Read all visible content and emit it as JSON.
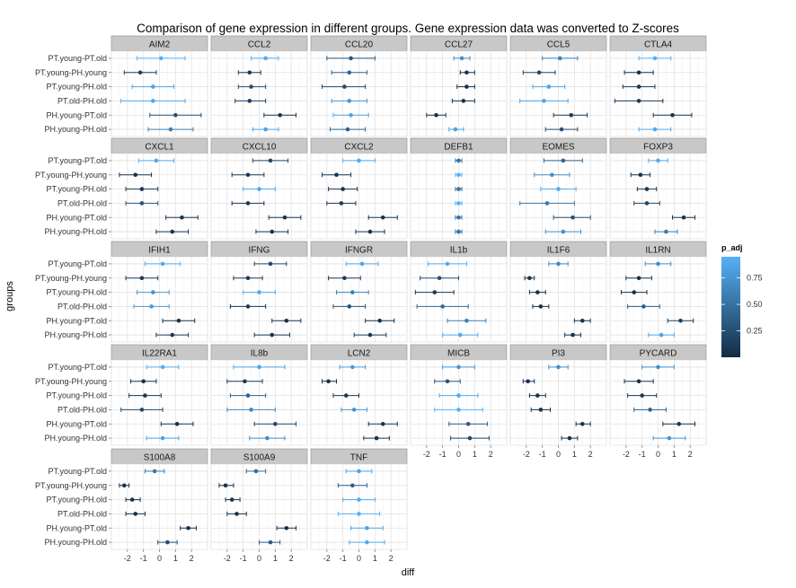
{
  "title": "Comparison of gene expression in different groups. Gene expression data was converted to Z-scores",
  "chart_data": {
    "type": "scatter",
    "x_label": "diff",
    "y_label": "groups",
    "xlim": [
      -3,
      3
    ],
    "x_ticks": [
      -2,
      -1,
      0,
      1,
      2
    ],
    "x_tick_labels": [
      "-2",
      "-1",
      "0",
      "1",
      "2"
    ],
    "groups": [
      "PT.young-PT.old",
      "PT.young-PH.young",
      "PT.young-PH.old",
      "PT.old-PH.old",
      "PH.young-PT.old",
      "PH.young-PH.old"
    ],
    "legend": {
      "title": "p_adj",
      "ticks": [
        0.25,
        0.5,
        0.75
      ],
      "tick_labels": [
        "0.25",
        "0.50",
        "0.75"
      ],
      "range": [
        0.0,
        0.95
      ],
      "low_color": "#132b43",
      "high_color": "#56b1f7"
    },
    "panel_background": "#ffffff",
    "grid": true,
    "strip_background": "#c8c8c8",
    "panels": [
      {
        "gene": "AIM2",
        "diff": [
          0.1,
          -1.2,
          -0.4,
          -0.4,
          1.0,
          0.7
        ],
        "lwr": [
          -1.4,
          -2.2,
          -1.7,
          -2.4,
          -0.6,
          -0.7
        ],
        "upr": [
          1.6,
          -0.2,
          0.9,
          1.6,
          2.6,
          2.1
        ],
        "p_adj": [
          0.95,
          0.15,
          0.85,
          0.88,
          0.25,
          0.6
        ]
      },
      {
        "gene": "CCL2",
        "diff": [
          0.4,
          -0.6,
          -0.5,
          -0.6,
          1.3,
          0.4
        ],
        "lwr": [
          -0.5,
          -1.3,
          -1.3,
          -1.5,
          0.3,
          -0.4
        ],
        "upr": [
          1.2,
          0.1,
          0.4,
          0.4,
          2.3,
          1.2
        ],
        "p_adj": [
          0.9,
          0.1,
          0.25,
          0.15,
          0.05,
          0.85
        ]
      },
      {
        "gene": "CCL20",
        "diff": [
          -0.5,
          -0.6,
          -0.9,
          -0.6,
          -0.5,
          -0.7
        ],
        "lwr": [
          -2.0,
          -1.7,
          -2.3,
          -1.7,
          -1.6,
          -1.8
        ],
        "upr": [
          1.0,
          0.5,
          0.4,
          0.5,
          0.6,
          0.4
        ],
        "p_adj": [
          0.3,
          0.4,
          0.2,
          0.75,
          0.85,
          0.4
        ]
      },
      {
        "gene": "CCL27",
        "diff": [
          0.2,
          0.5,
          0.5,
          0.3,
          -1.4,
          -0.2
        ],
        "lwr": [
          -0.3,
          0.1,
          -0.1,
          -0.4,
          -2.0,
          -0.6
        ],
        "upr": [
          0.7,
          1.0,
          1.0,
          1.0,
          -0.8,
          0.3
        ],
        "p_adj": [
          0.7,
          0.05,
          0.05,
          0.05,
          0.05,
          0.85
        ]
      },
      {
        "gene": "CCL5",
        "diff": [
          0.1,
          -1.2,
          -0.6,
          -0.9,
          0.8,
          0.2
        ],
        "lwr": [
          -1.0,
          -2.2,
          -1.6,
          -2.4,
          -0.3,
          -0.8
        ],
        "upr": [
          1.2,
          -0.2,
          0.4,
          0.6,
          1.8,
          1.2
        ],
        "p_adj": [
          0.6,
          0.2,
          0.85,
          0.85,
          0.1,
          0.25
        ]
      },
      {
        "gene": "CTLA4",
        "diff": [
          -0.2,
          -1.2,
          -1.2,
          -1.2,
          0.9,
          -0.2
        ],
        "lwr": [
          -1.2,
          -2.1,
          -2.2,
          -2.7,
          -0.3,
          -1.2
        ],
        "upr": [
          0.8,
          -0.3,
          -0.2,
          0.3,
          2.1,
          0.8
        ],
        "p_adj": [
          0.95,
          0.05,
          0.1,
          0.1,
          0.05,
          0.9
        ]
      },
      {
        "gene": "CXCL1",
        "diff": [
          -0.2,
          -1.5,
          -1.1,
          -1.1,
          1.4,
          0.8
        ],
        "lwr": [
          -1.3,
          -2.5,
          -2.1,
          -2.1,
          0.4,
          -0.2
        ],
        "upr": [
          0.9,
          -0.5,
          -0.1,
          -0.1,
          2.4,
          1.8
        ],
        "p_adj": [
          0.9,
          0.05,
          0.1,
          0.3,
          0.05,
          0.05
        ]
      },
      {
        "gene": "CXCL10",
        "diff": [
          0.7,
          -0.7,
          0.0,
          -0.7,
          1.6,
          0.8
        ],
        "lwr": [
          -0.4,
          -1.7,
          -1.0,
          -1.7,
          0.6,
          -0.2
        ],
        "upr": [
          1.8,
          0.3,
          1.0,
          0.3,
          2.6,
          1.8
        ],
        "p_adj": [
          0.2,
          0.1,
          0.9,
          0.1,
          0.05,
          0.05
        ]
      },
      {
        "gene": "CXCL2",
        "diff": [
          0.0,
          -1.4,
          -1.0,
          -1.1,
          1.5,
          0.7
        ],
        "lwr": [
          -1.0,
          -2.3,
          -1.9,
          -2.0,
          0.6,
          -0.2
        ],
        "upr": [
          1.0,
          -0.5,
          -0.1,
          -0.2,
          2.4,
          1.6
        ],
        "p_adj": [
          0.9,
          0.05,
          0.05,
          0.1,
          0.05,
          0.05
        ]
      },
      {
        "gene": "DEFB1",
        "diff": [
          0.0,
          0.0,
          0.0,
          0.0,
          0.0,
          0.0
        ],
        "lwr": [
          -0.2,
          -0.2,
          -0.2,
          -0.2,
          -0.2,
          -0.2
        ],
        "upr": [
          0.2,
          0.2,
          0.2,
          0.2,
          0.2,
          0.2
        ],
        "p_adj": [
          0.5,
          0.95,
          0.5,
          0.95,
          0.5,
          0.5
        ]
      },
      {
        "gene": "EOMES",
        "diff": [
          0.3,
          -0.4,
          0.0,
          -0.7,
          0.9,
          0.3
        ],
        "lwr": [
          -0.9,
          -1.5,
          -1.1,
          -2.4,
          -0.3,
          -0.8
        ],
        "upr": [
          1.5,
          0.7,
          1.1,
          1.0,
          2.0,
          1.4
        ],
        "p_adj": [
          0.4,
          0.7,
          0.9,
          0.55,
          0.25,
          0.7
        ]
      },
      {
        "gene": "FOXP3",
        "diff": [
          0.0,
          -1.1,
          -0.7,
          -0.7,
          1.6,
          0.5
        ],
        "lwr": [
          -0.6,
          -1.7,
          -1.3,
          -1.5,
          0.9,
          -0.2
        ],
        "upr": [
          0.6,
          -0.5,
          -0.1,
          0.1,
          2.3,
          1.2
        ],
        "p_adj": [
          0.9,
          0.05,
          0.1,
          0.2,
          0.05,
          0.55
        ]
      },
      {
        "gene": "IFIH1",
        "diff": [
          0.2,
          -1.1,
          -0.4,
          -0.5,
          1.2,
          0.8
        ],
        "lwr": [
          -0.9,
          -2.1,
          -1.4,
          -1.6,
          0.2,
          -0.2
        ],
        "upr": [
          1.3,
          -0.1,
          0.6,
          0.6,
          2.2,
          1.8
        ],
        "p_adj": [
          0.9,
          0.1,
          0.75,
          0.8,
          0.05,
          0.1
        ]
      },
      {
        "gene": "IFNG",
        "diff": [
          0.7,
          -0.7,
          0.0,
          -0.7,
          1.7,
          0.8
        ],
        "lwr": [
          -0.3,
          -1.6,
          -1.0,
          -1.8,
          0.8,
          -0.3
        ],
        "upr": [
          1.7,
          0.2,
          1.0,
          0.4,
          2.6,
          1.9
        ],
        "p_adj": [
          0.2,
          0.1,
          0.9,
          0.1,
          0.05,
          0.05
        ]
      },
      {
        "gene": "IFNGR",
        "diff": [
          0.2,
          -0.9,
          -0.4,
          -0.6,
          1.3,
          0.7
        ],
        "lwr": [
          -0.8,
          -1.9,
          -1.4,
          -1.6,
          0.4,
          -0.3
        ],
        "upr": [
          1.2,
          0.1,
          0.6,
          0.4,
          2.2,
          1.7
        ],
        "p_adj": [
          0.85,
          0.1,
          0.6,
          0.3,
          0.05,
          0.1
        ]
      },
      {
        "gene": "IL1b",
        "diff": [
          -0.7,
          -1.2,
          -1.5,
          -1.0,
          0.5,
          0.1
        ],
        "lwr": [
          -1.9,
          -2.4,
          -2.7,
          -2.6,
          -0.7,
          -1.0
        ],
        "upr": [
          0.5,
          0.0,
          -0.3,
          0.6,
          1.7,
          1.2
        ],
        "p_adj": [
          0.9,
          0.25,
          0.1,
          0.45,
          0.6,
          0.9
        ]
      },
      {
        "gene": "IL1F6",
        "diff": [
          0.0,
          -1.8,
          -1.3,
          -1.1,
          1.5,
          0.9
        ],
        "lwr": [
          -0.6,
          -2.1,
          -1.8,
          -1.6,
          1.0,
          0.4
        ],
        "upr": [
          0.6,
          -1.5,
          -0.8,
          -0.6,
          2.0,
          1.4
        ],
        "p_adj": [
          0.65,
          0.05,
          0.05,
          0.05,
          0.05,
          0.05
        ]
      },
      {
        "gene": "IL1RN",
        "diff": [
          0.0,
          -1.2,
          -1.5,
          -0.9,
          1.4,
          0.2
        ],
        "lwr": [
          -0.8,
          -2.0,
          -2.3,
          -1.9,
          0.6,
          -0.6
        ],
        "upr": [
          0.8,
          -0.4,
          -0.7,
          0.1,
          2.2,
          1.0
        ],
        "p_adj": [
          0.7,
          0.05,
          0.05,
          0.35,
          0.15,
          0.85
        ]
      },
      {
        "gene": "IL22RA1",
        "diff": [
          0.2,
          -1.0,
          -0.9,
          -1.1,
          1.1,
          0.2
        ],
        "lwr": [
          -0.8,
          -1.8,
          -1.9,
          -2.4,
          0.1,
          -0.8
        ],
        "upr": [
          1.2,
          -0.2,
          0.1,
          0.2,
          2.1,
          1.2
        ],
        "p_adj": [
          0.9,
          0.05,
          0.1,
          0.2,
          0.05,
          0.85
        ]
      },
      {
        "gene": "IL8b",
        "diff": [
          0.0,
          -0.9,
          -0.7,
          -0.5,
          1.0,
          0.5
        ],
        "lwr": [
          -1.6,
          -2.0,
          -1.8,
          -2.0,
          -0.3,
          -0.6
        ],
        "upr": [
          1.6,
          0.2,
          0.4,
          1.0,
          2.3,
          1.6
        ],
        "p_adj": [
          0.85,
          0.1,
          0.4,
          0.65,
          0.2,
          0.7
        ]
      },
      {
        "gene": "LCN2",
        "diff": [
          -0.4,
          -1.9,
          -0.8,
          -0.3,
          1.5,
          1.1
        ],
        "lwr": [
          -1.2,
          -2.3,
          -1.6,
          -1.1,
          0.6,
          0.3
        ],
        "upr": [
          0.4,
          -1.4,
          0.0,
          0.5,
          2.4,
          1.9
        ],
        "p_adj": [
          0.8,
          0.05,
          0.1,
          0.75,
          0.05,
          0.05
        ]
      },
      {
        "gene": "MICB",
        "diff": [
          0.0,
          -0.7,
          0.0,
          0.0,
          0.6,
          0.7
        ],
        "lwr": [
          -1.0,
          -1.5,
          -1.2,
          -1.5,
          -0.6,
          -0.5
        ],
        "upr": [
          1.0,
          0.1,
          1.2,
          1.5,
          1.8,
          1.9
        ],
        "p_adj": [
          0.75,
          0.3,
          0.9,
          0.95,
          0.35,
          0.2
        ]
      },
      {
        "gene": "PI3",
        "diff": [
          0.0,
          -1.9,
          -1.3,
          -1.1,
          1.5,
          0.7
        ],
        "lwr": [
          -0.6,
          -2.2,
          -1.8,
          -1.7,
          1.1,
          0.2
        ],
        "upr": [
          0.6,
          -1.5,
          -0.8,
          -0.5,
          2.0,
          1.2
        ],
        "p_adj": [
          0.7,
          0.05,
          0.05,
          0.05,
          0.05,
          0.05
        ]
      },
      {
        "gene": "PYCARD",
        "diff": [
          0.0,
          -1.2,
          -1.0,
          -0.5,
          1.3,
          0.7
        ],
        "lwr": [
          -1.0,
          -2.1,
          -1.9,
          -1.5,
          0.3,
          -0.3
        ],
        "upr": [
          1.0,
          -0.3,
          -0.1,
          0.5,
          2.3,
          1.7
        ],
        "p_adj": [
          0.7,
          0.05,
          0.1,
          0.4,
          0.05,
          0.75
        ]
      },
      {
        "gene": "S100A8",
        "diff": [
          -0.3,
          -2.2,
          -1.7,
          -1.5,
          1.8,
          0.5
        ],
        "lwr": [
          -0.9,
          -2.5,
          -2.1,
          -2.1,
          1.3,
          -0.1
        ],
        "upr": [
          0.3,
          -1.9,
          -1.2,
          -0.9,
          2.3,
          1.1
        ],
        "p_adj": [
          0.55,
          0.05,
          0.05,
          0.05,
          0.05,
          0.25
        ]
      },
      {
        "gene": "S100A9",
        "diff": [
          -0.2,
          -2.1,
          -1.7,
          -1.4,
          1.7,
          0.7
        ],
        "lwr": [
          -0.8,
          -2.5,
          -2.1,
          -2.0,
          1.1,
          0.0
        ],
        "upr": [
          0.4,
          -1.6,
          -1.2,
          -0.8,
          2.3,
          1.3
        ],
        "p_adj": [
          0.45,
          0.05,
          0.05,
          0.05,
          0.05,
          0.35
        ]
      },
      {
        "gene": "TNF",
        "diff": [
          0.0,
          -0.4,
          0.0,
          0.0,
          0.5,
          0.5
        ],
        "lwr": [
          -0.8,
          -1.3,
          -1.0,
          -1.3,
          -0.5,
          -0.6
        ],
        "upr": [
          0.8,
          0.5,
          1.0,
          1.3,
          1.5,
          1.6
        ],
        "p_adj": [
          0.85,
          0.35,
          0.9,
          0.95,
          0.85,
          0.9
        ]
      }
    ]
  }
}
